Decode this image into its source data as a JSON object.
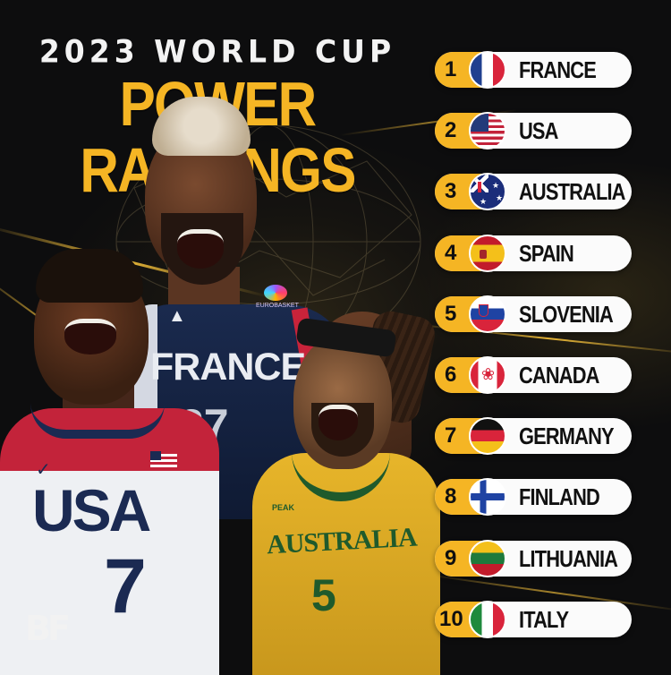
{
  "header": {
    "line1": "2023 WORLD CUP",
    "line2": "POWER RANKINGS"
  },
  "players": {
    "france": {
      "jersey_text": "FRANCE",
      "number": "27",
      "logo_text": "EUROBASKET"
    },
    "usa": {
      "jersey_text": "USA",
      "number": "7"
    },
    "australia": {
      "jersey_text": "AUSTRALIA",
      "number": "5",
      "brand": "PEAK"
    }
  },
  "brand_logo": "BF",
  "rankings": [
    {
      "rank": "1",
      "country": "FRANCE",
      "flag": "flag-france-icon"
    },
    {
      "rank": "2",
      "country": "USA",
      "flag": "flag-usa-icon"
    },
    {
      "rank": "3",
      "country": "AUSTRALIA",
      "flag": "flag-australia-icon"
    },
    {
      "rank": "4",
      "country": "SPAIN",
      "flag": "flag-spain-icon"
    },
    {
      "rank": "5",
      "country": "SLOVENIA",
      "flag": "flag-slovenia-icon"
    },
    {
      "rank": "6",
      "country": "CANADA",
      "flag": "flag-canada-icon"
    },
    {
      "rank": "7",
      "country": "GERMANY",
      "flag": "flag-germany-icon"
    },
    {
      "rank": "8",
      "country": "FINLAND",
      "flag": "flag-finland-icon"
    },
    {
      "rank": "9",
      "country": "LITHUANIA",
      "flag": "flag-lithuania-icon"
    },
    {
      "rank": "10",
      "country": "ITALY",
      "flag": "flag-italy-icon"
    }
  ],
  "colors": {
    "accent": "#f5b524",
    "background": "#0d0d0e",
    "pill": "#fbfbfb"
  }
}
